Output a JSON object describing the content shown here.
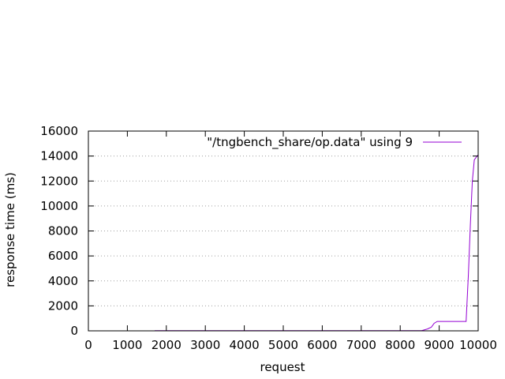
{
  "chart_data": {
    "type": "line",
    "title": "",
    "xlabel": "request",
    "ylabel": "response time (ms)",
    "xlim": [
      0,
      10000
    ],
    "ylim": [
      0,
      16000
    ],
    "x_ticks": [
      0,
      1000,
      2000,
      3000,
      4000,
      5000,
      6000,
      7000,
      8000,
      9000,
      10000
    ],
    "y_ticks": [
      0,
      2000,
      4000,
      6000,
      8000,
      10000,
      12000,
      14000,
      16000
    ],
    "x_tick_labels": [
      "0",
      "1000",
      "2000",
      "3000",
      "4000",
      "5000",
      "6000",
      "7000",
      "8000",
      "9000",
      "10000"
    ],
    "y_tick_labels": [
      "0",
      "2000",
      "4000",
      "6000",
      "8000",
      "10000",
      "12000",
      "14000",
      "16000"
    ],
    "grid": "horizontal dotted",
    "legend_position": "top-right",
    "series": [
      {
        "name": "\"/tngbench_share/op.data\" using 9",
        "color": "#9400d3",
        "points": [
          [
            1700,
            10
          ],
          [
            5000,
            10
          ],
          [
            8000,
            10
          ],
          [
            8550,
            20
          ],
          [
            8700,
            150
          ],
          [
            8800,
            300
          ],
          [
            8870,
            600
          ],
          [
            8950,
            750
          ],
          [
            9000,
            750
          ],
          [
            9200,
            750
          ],
          [
            9500,
            750
          ],
          [
            9690,
            750
          ],
          [
            9750,
            4500
          ],
          [
            9800,
            8500
          ],
          [
            9850,
            12000
          ],
          [
            9900,
            13700
          ],
          [
            9950,
            13900
          ],
          [
            10000,
            14100
          ]
        ]
      }
    ]
  }
}
